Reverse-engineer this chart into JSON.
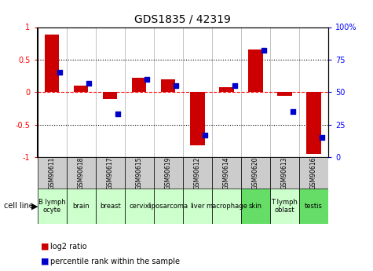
{
  "title": "GDS1835 / 42319",
  "samples": [
    "GSM90611",
    "GSM90618",
    "GSM90617",
    "GSM90615",
    "GSM90619",
    "GSM90612",
    "GSM90614",
    "GSM90620",
    "GSM90613",
    "GSM90616"
  ],
  "cell_lines": [
    "B lymph\nocyte",
    "brain",
    "breast",
    "cervix",
    "liposarcoma",
    "liver",
    "macrophage",
    "skin",
    "T lymph\noblast",
    "testis"
  ],
  "cell_line_colors": [
    "#ccffcc",
    "#ccffcc",
    "#ccffcc",
    "#ccffcc",
    "#ccffcc",
    "#ccffcc",
    "#ccffcc",
    "#66dd66",
    "#ccffcc",
    "#66dd66"
  ],
  "log2_ratio": [
    0.88,
    0.1,
    -0.1,
    0.22,
    0.2,
    -0.82,
    0.08,
    0.65,
    -0.06,
    -0.95
  ],
  "percentile_rank": [
    65,
    57,
    33,
    60,
    55,
    17,
    55,
    82,
    35,
    15
  ],
  "bar_color": "#cc0000",
  "dot_color": "#0000cc",
  "sample_box_color": "#cccccc",
  "ylim": [
    -1,
    1
  ],
  "y2lim": [
    0,
    100
  ],
  "yticks": [
    -1,
    -0.5,
    0,
    0.5,
    1
  ],
  "y2ticks": [
    0,
    25,
    50,
    75,
    100
  ],
  "ytick_labels": [
    "-1",
    "-0.5",
    "0",
    "0.5",
    "1"
  ],
  "y2tick_labels": [
    "0",
    "25",
    "50",
    "75",
    "100%"
  ],
  "bar_width": 0.5,
  "dot_size": 25
}
